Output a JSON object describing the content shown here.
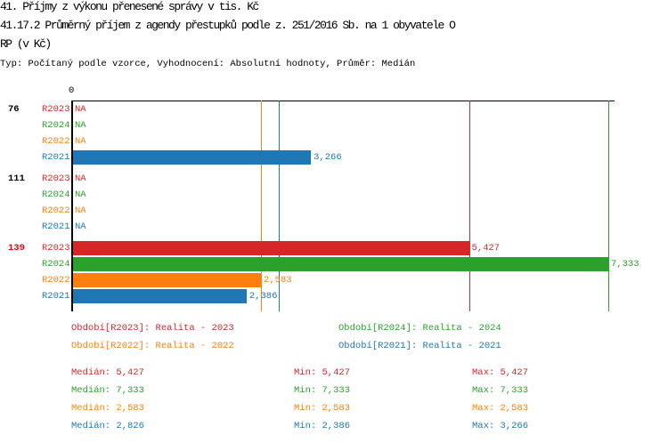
{
  "header": {
    "title": "41. Příjmy z výkonu přenesené správy v tis. Kč",
    "subtitle_1": "41.17.2 Průměrný příjem z agendy přestupků podle z. 251/2016 Sb. na 1 obyvatele O",
    "subtitle_2": "RP (v Kč)",
    "type_line": "Typ: Počítaný podle vzorce, Vyhodnocení: Absolutní hodnoty, Průměr: Medián"
  },
  "colors": {
    "R2023": "#d62728",
    "R2024": "#2ca02c",
    "R2022": "#ff7f0e",
    "R2021": "#1f77b4"
  },
  "chart_data": {
    "type": "bar",
    "orientation": "horizontal",
    "x_tick_labels": [
      "0"
    ],
    "xlim": [
      0,
      7333
    ],
    "groups": [
      {
        "label": "76",
        "highlight": false,
        "rows": [
          {
            "series": "R2023",
            "value": null,
            "label": "NA"
          },
          {
            "series": "R2024",
            "value": null,
            "label": "NA"
          },
          {
            "series": "R2022",
            "value": null,
            "label": "NA"
          },
          {
            "series": "R2021",
            "value": 3266,
            "label": "3,266"
          }
        ]
      },
      {
        "label": "111",
        "highlight": false,
        "rows": [
          {
            "series": "R2023",
            "value": null,
            "label": "NA"
          },
          {
            "series": "R2024",
            "value": null,
            "label": "NA"
          },
          {
            "series": "R2022",
            "value": null,
            "label": "NA"
          },
          {
            "series": "R2021",
            "value": null,
            "label": "NA"
          }
        ]
      },
      {
        "label": "139",
        "highlight": true,
        "rows": [
          {
            "series": "R2023",
            "value": 5427,
            "label": "5,427"
          },
          {
            "series": "R2024",
            "value": 7333,
            "label": "7,333"
          },
          {
            "series": "R2022",
            "value": 2583,
            "label": "2,583"
          },
          {
            "series": "R2021",
            "value": 2386,
            "label": "2,386"
          }
        ]
      }
    ],
    "median_lines": [
      {
        "series": "R2022",
        "value": 2583
      },
      {
        "series": "R2021",
        "value": 2826
      },
      {
        "series": "R2023",
        "value": 5427
      },
      {
        "series": "R2024",
        "value": 7333
      }
    ],
    "legend": [
      {
        "series": "R2023",
        "text": "Období[R2023]: Realita - 2023"
      },
      {
        "series": "R2024",
        "text": "Období[R2024]: Realita - 2024"
      },
      {
        "series": "R2022",
        "text": "Období[R2022]: Realita - 2022"
      },
      {
        "series": "R2021",
        "text": "Období[R2021]: Realita - 2021"
      }
    ],
    "stats": [
      {
        "series": "R2023",
        "median": "Medián: 5,427",
        "min": "Min: 5,427",
        "max": "Max: 5,427"
      },
      {
        "series": "R2024",
        "median": "Medián: 7,333",
        "min": "Min: 7,333",
        "max": "Max: 7,333"
      },
      {
        "series": "R2022",
        "median": "Medián: 2,583",
        "min": "Min: 2,583",
        "max": "Max: 2,583"
      },
      {
        "series": "R2021",
        "median": "Medián: 2,826",
        "min": "Min: 2,386",
        "max": "Max: 3,266"
      }
    ]
  }
}
